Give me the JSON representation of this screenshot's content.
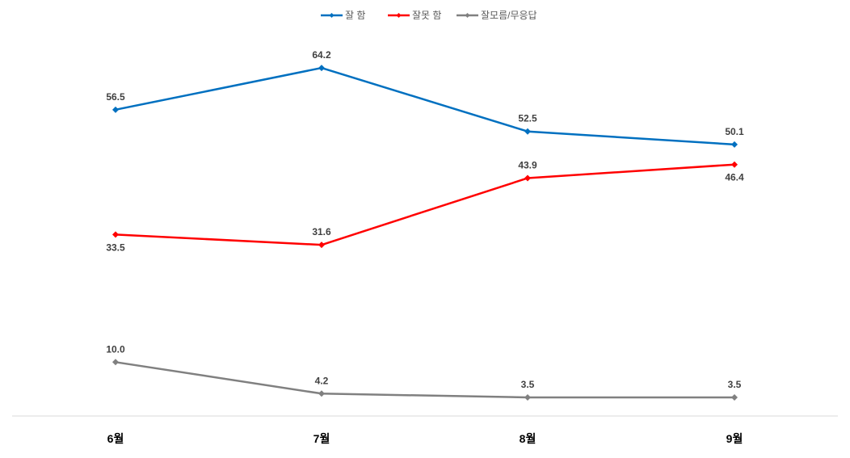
{
  "chart_data": {
    "type": "line",
    "categories": [
      "6월",
      "7월",
      "8월",
      "9월"
    ],
    "series": [
      {
        "name": "잘 함",
        "color": "#0070C0",
        "values": [
          56.5,
          64.2,
          52.5,
          50.1
        ],
        "label_pos": [
          "above",
          "above",
          "above",
          "above"
        ]
      },
      {
        "name": "잘못 함",
        "color": "#FF0000",
        "values": [
          33.5,
          31.6,
          43.9,
          46.4
        ],
        "label_pos": [
          "below",
          "above",
          "above",
          "below"
        ]
      },
      {
        "name": "잘모름/무응답",
        "color": "#808080",
        "values": [
          10.0,
          4.2,
          3.5,
          3.5
        ],
        "label_pos": [
          "above",
          "above",
          "above",
          "above"
        ]
      }
    ],
    "ylim": [
      0,
      70
    ],
    "grid": false,
    "legend": "top",
    "marker": "diamond",
    "axis_line_color": "#D9D9D9"
  }
}
